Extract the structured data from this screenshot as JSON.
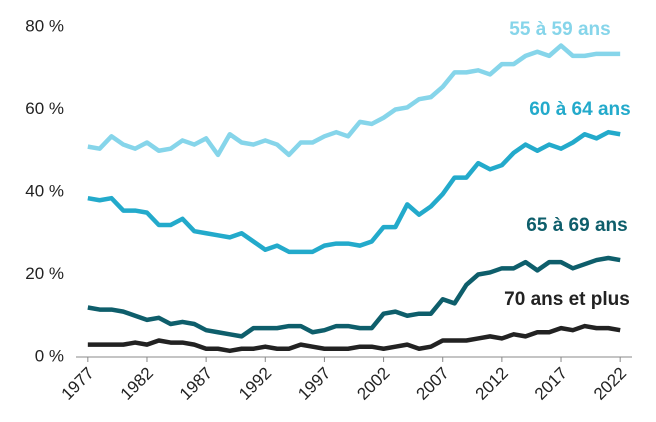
{
  "chart_data": {
    "type": "line",
    "x": [
      1977,
      1978,
      1979,
      1980,
      1981,
      1982,
      1983,
      1984,
      1985,
      1986,
      1987,
      1988,
      1989,
      1990,
      1991,
      1992,
      1993,
      1994,
      1995,
      1996,
      1997,
      1998,
      1999,
      2000,
      2001,
      2002,
      2003,
      2004,
      2005,
      2006,
      2007,
      2008,
      2009,
      2010,
      2011,
      2012,
      2013,
      2014,
      2015,
      2016,
      2017,
      2018,
      2019,
      2020,
      2021,
      2022
    ],
    "xlim": [
      1976,
      2023
    ],
    "xticks": [
      1977,
      1982,
      1987,
      1992,
      1997,
      2002,
      2007,
      2012,
      2017,
      2022
    ],
    "ylim": [
      0,
      80
    ],
    "yticks": [
      {
        "value": 0,
        "label": "0 %"
      },
      {
        "value": 20,
        "label": "20 %"
      },
      {
        "value": 40,
        "label": "40 %"
      },
      {
        "value": 60,
        "label": "60 %"
      },
      {
        "value": 80,
        "label": "80 %"
      }
    ],
    "series": [
      {
        "name": "55 à 59 ans",
        "color": "#86d5ea",
        "values": [
          51,
          50.5,
          53.5,
          51.5,
          50.5,
          52,
          50,
          50.5,
          52.5,
          51.5,
          53,
          49,
          54,
          52,
          51.5,
          52.5,
          51.5,
          49,
          52,
          52,
          53.5,
          54.5,
          53.5,
          57,
          56.5,
          58,
          60,
          60.5,
          62.5,
          63,
          65.5,
          69,
          69,
          69.5,
          68.5,
          71,
          71,
          73,
          74,
          73,
          75.5,
          73,
          73,
          73.5,
          73.5,
          73.5
        ]
      },
      {
        "name": "60 à 64 ans",
        "color": "#23aacb",
        "values": [
          38.5,
          38,
          38.5,
          35.5,
          35.5,
          35,
          32,
          32,
          33.5,
          30.5,
          30,
          29.5,
          29,
          30,
          28,
          26,
          27,
          25.5,
          25.5,
          25.5,
          27,
          27.5,
          27.5,
          27,
          28,
          31.5,
          31.5,
          37,
          34.5,
          36.5,
          39.5,
          43.5,
          43.5,
          47,
          45.5,
          46.5,
          49.5,
          51.5,
          50,
          51.5,
          50.5,
          52,
          54,
          53,
          54.5,
          54
        ]
      },
      {
        "name": "65 à 69 ans",
        "color": "#0e5e6b",
        "values": [
          12,
          11.5,
          11.5,
          11,
          10,
          9,
          9.5,
          8,
          8.5,
          8,
          6.5,
          6,
          5.5,
          5,
          7,
          7,
          7,
          7.5,
          7.5,
          6,
          6.5,
          7.5,
          7.5,
          7,
          7,
          10.5,
          11,
          10,
          10.5,
          10.5,
          14,
          13,
          17.5,
          20,
          20.5,
          21.5,
          21.5,
          23,
          21,
          23,
          23,
          21.5,
          22.5,
          23.5,
          24,
          23.5
        ]
      },
      {
        "name": "70 ans et plus",
        "color": "#222222",
        "values": [
          3,
          3,
          3,
          3,
          3.5,
          3,
          4,
          3.5,
          3.5,
          3,
          2,
          2,
          1.5,
          2,
          2,
          2.5,
          2,
          2,
          3,
          2.5,
          2,
          2,
          2,
          2.5,
          2.5,
          2,
          2.5,
          3,
          2,
          2.5,
          4,
          4,
          4,
          4.5,
          5,
          4.5,
          5.5,
          5,
          6,
          6,
          7,
          6.5,
          7.5,
          7,
          7,
          6.5
        ]
      }
    ]
  }
}
